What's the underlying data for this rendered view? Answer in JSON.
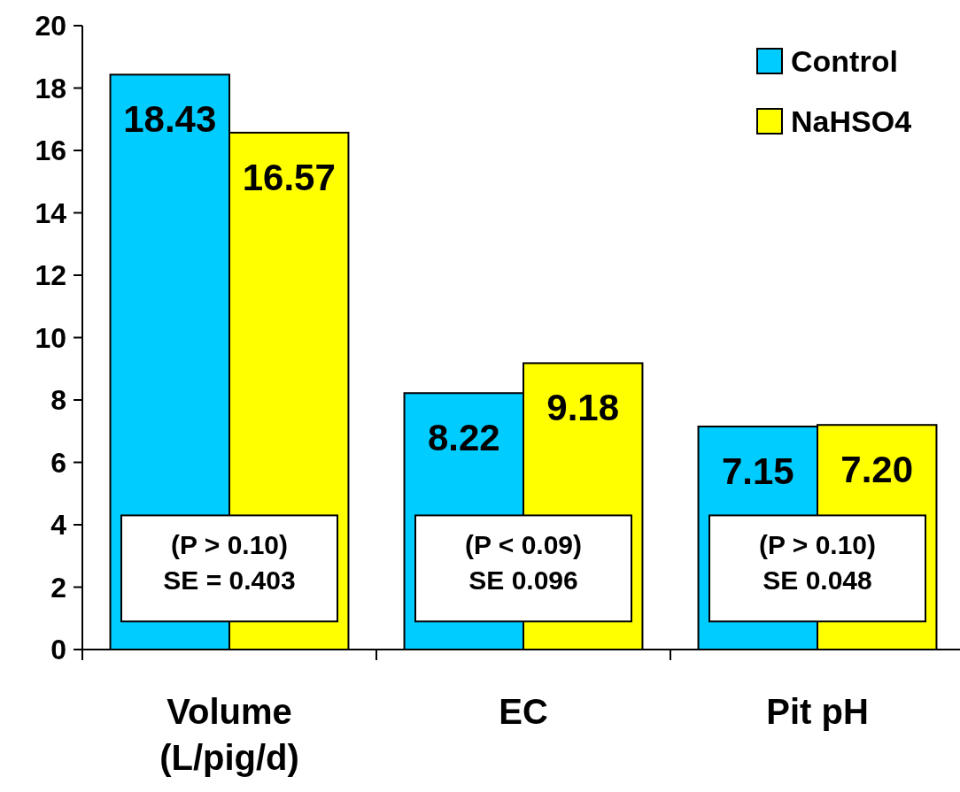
{
  "chart_data": {
    "type": "bar",
    "categories": [
      "Volume\n(L/pig/d)",
      "EC",
      "Pit pH"
    ],
    "series": [
      {
        "name": "Control",
        "color": "#00ccff",
        "values": [
          18.43,
          8.22,
          7.15
        ],
        "value_labels": [
          "18.43",
          "8.22",
          "7.15"
        ]
      },
      {
        "name": "NaHSO4",
        "color": "#ffff00",
        "values": [
          16.57,
          9.18,
          7.2
        ],
        "value_labels": [
          "16.57",
          "9.18",
          "7.20"
        ]
      }
    ],
    "ylim": [
      0,
      20
    ],
    "yticks": [
      0,
      2,
      4,
      6,
      8,
      10,
      12,
      14,
      16,
      18,
      20
    ],
    "grid": false,
    "legend": "top right",
    "annotations": [
      "(P > 0.10)\nSE = 0.403",
      "(P < 0.09)\nSE 0.096",
      "(P > 0.10)\nSE 0.048"
    ]
  }
}
